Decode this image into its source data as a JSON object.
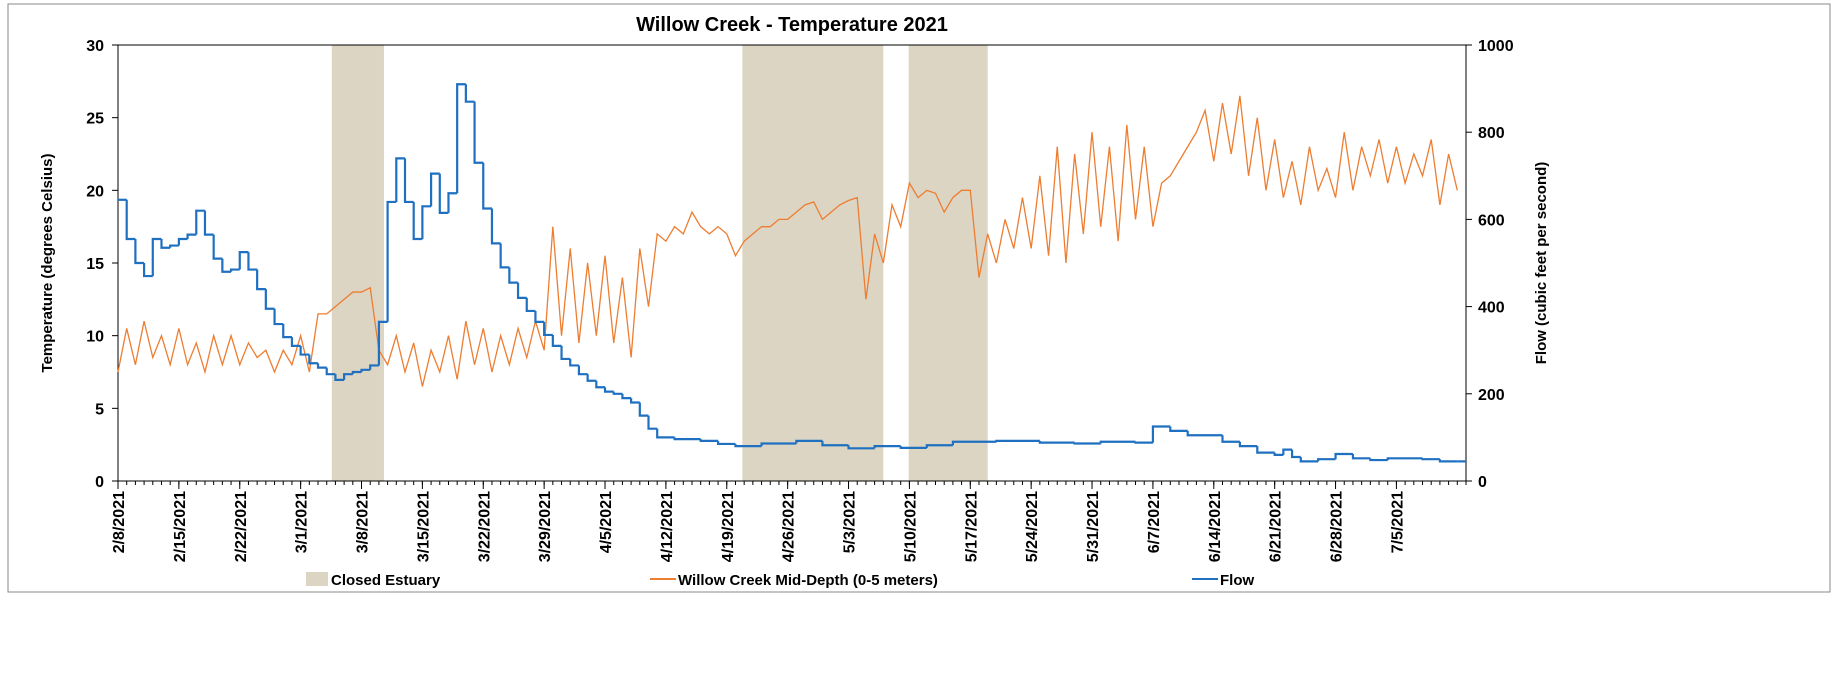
{
  "chart_data": {
    "type": "line",
    "title": "Willow Creek - Temperature 2021",
    "ylabel": "Temperature (degrees Celsius)",
    "y2label": "Flow (cubic feet per second)",
    "xlim": [
      "2021-02-08",
      "2021-07-13"
    ],
    "ylim": [
      0,
      30
    ],
    "yticks": [
      0,
      5,
      10,
      15,
      20,
      25,
      30
    ],
    "y2lim": [
      0,
      1000
    ],
    "y2ticks": [
      0,
      200,
      400,
      600,
      800,
      1000
    ],
    "xticks": [
      {
        "value": "2021-02-08",
        "label": "2/8/2021"
      },
      {
        "value": "2021-02-15",
        "label": "2/15/2021"
      },
      {
        "value": "2021-02-22",
        "label": "2/22/2021"
      },
      {
        "value": "2021-03-01",
        "label": "3/1/2021"
      },
      {
        "value": "2021-03-08",
        "label": "3/8/2021"
      },
      {
        "value": "2021-03-15",
        "label": "3/15/2021"
      },
      {
        "value": "2021-03-22",
        "label": "3/22/2021"
      },
      {
        "value": "2021-03-29",
        "label": "3/29/2021"
      },
      {
        "value": "2021-04-05",
        "label": "4/5/2021"
      },
      {
        "value": "2021-04-12",
        "label": "4/12/2021"
      },
      {
        "value": "2021-04-19",
        "label": "4/19/2021"
      },
      {
        "value": "2021-04-26",
        "label": "4/26/2021"
      },
      {
        "value": "2021-05-03",
        "label": "5/3/2021"
      },
      {
        "value": "2021-05-10",
        "label": "5/10/2021"
      },
      {
        "value": "2021-05-17",
        "label": "5/17/2021"
      },
      {
        "value": "2021-05-24",
        "label": "5/24/2021"
      },
      {
        "value": "2021-05-31",
        "label": "5/31/2021"
      },
      {
        "value": "2021-06-07",
        "label": "6/7/2021"
      },
      {
        "value": "2021-06-14",
        "label": "6/14/2021"
      },
      {
        "value": "2021-06-21",
        "label": "6/21/2021"
      },
      {
        "value": "2021-06-28",
        "label": "6/28/2021"
      },
      {
        "value": "2021-07-05",
        "label": "7/5/2021"
      }
    ],
    "shaded": {
      "name": "Closed Estuary",
      "color": "#ddd5c3",
      "spans": [
        [
          "2021-03-04T14",
          "2021-03-10T14"
        ],
        [
          "2021-04-20T19",
          "2021-05-07T00"
        ],
        [
          "2021-05-09T22",
          "2021-05-19T00"
        ]
      ]
    },
    "series": [
      {
        "name": "Willow Creek Mid-Depth (0-5 meters)",
        "color": "#ed7d31",
        "style": "line",
        "x": [
          "2021-02-08",
          "2021-02-09",
          "2021-02-10",
          "2021-02-11",
          "2021-02-12",
          "2021-02-13",
          "2021-02-14",
          "2021-02-15",
          "2021-02-16",
          "2021-02-17",
          "2021-02-18",
          "2021-02-19",
          "2021-02-20",
          "2021-02-21",
          "2021-02-22",
          "2021-02-23",
          "2021-02-24",
          "2021-02-25",
          "2021-02-26",
          "2021-02-27",
          "2021-02-28",
          "2021-03-01",
          "2021-03-02",
          "2021-03-03",
          "2021-03-04",
          "2021-03-05",
          "2021-03-06",
          "2021-03-07",
          "2021-03-08",
          "2021-03-09",
          "2021-03-10",
          "2021-03-11",
          "2021-03-12",
          "2021-03-13",
          "2021-03-14",
          "2021-03-15",
          "2021-03-16",
          "2021-03-17",
          "2021-03-18",
          "2021-03-19",
          "2021-03-20",
          "2021-03-21",
          "2021-03-22",
          "2021-03-23",
          "2021-03-24",
          "2021-03-25",
          "2021-03-26",
          "2021-03-27",
          "2021-03-28",
          "2021-03-29",
          "2021-03-30",
          "2021-03-31",
          "2021-04-01",
          "2021-04-02",
          "2021-04-03",
          "2021-04-04",
          "2021-04-05",
          "2021-04-06",
          "2021-04-07",
          "2021-04-08",
          "2021-04-09",
          "2021-04-10",
          "2021-04-11",
          "2021-04-12",
          "2021-04-13",
          "2021-04-14",
          "2021-04-15",
          "2021-04-16",
          "2021-04-17",
          "2021-04-18",
          "2021-04-19",
          "2021-04-20",
          "2021-04-21",
          "2021-04-22",
          "2021-04-23",
          "2021-04-24",
          "2021-04-25",
          "2021-04-26",
          "2021-04-27",
          "2021-04-28",
          "2021-04-29",
          "2021-04-30",
          "2021-05-01",
          "2021-05-02",
          "2021-05-03",
          "2021-05-04",
          "2021-05-05",
          "2021-05-06",
          "2021-05-07",
          "2021-05-08",
          "2021-05-09",
          "2021-05-10",
          "2021-05-11",
          "2021-05-12",
          "2021-05-13",
          "2021-05-14",
          "2021-05-15",
          "2021-05-16",
          "2021-05-17",
          "2021-05-18",
          "2021-05-19",
          "2021-05-20",
          "2021-05-21",
          "2021-05-22",
          "2021-05-23",
          "2021-05-24",
          "2021-05-25",
          "2021-05-26",
          "2021-05-27",
          "2021-05-28",
          "2021-05-29",
          "2021-05-30",
          "2021-05-31",
          "2021-06-01",
          "2021-06-02",
          "2021-06-03",
          "2021-06-04",
          "2021-06-05",
          "2021-06-06",
          "2021-06-07",
          "2021-06-08",
          "2021-06-09",
          "2021-06-10",
          "2021-06-11",
          "2021-06-12",
          "2021-06-13",
          "2021-06-14",
          "2021-06-15",
          "2021-06-16",
          "2021-06-17",
          "2021-06-18",
          "2021-06-19",
          "2021-06-20",
          "2021-06-21",
          "2021-06-22",
          "2021-06-23",
          "2021-06-24",
          "2021-06-25",
          "2021-06-26",
          "2021-06-27",
          "2021-06-28",
          "2021-06-29",
          "2021-06-30",
          "2021-07-01",
          "2021-07-02",
          "2021-07-03",
          "2021-07-04",
          "2021-07-05",
          "2021-07-06",
          "2021-07-07",
          "2021-07-08",
          "2021-07-09",
          "2021-07-10",
          "2021-07-11",
          "2021-07-12"
        ],
        "values": [
          7.5,
          10.5,
          8,
          11,
          8.5,
          10,
          8,
          10.5,
          8,
          9.5,
          7.5,
          10,
          8,
          10,
          8,
          9.5,
          8.5,
          9,
          7.5,
          9,
          8,
          10,
          7.5,
          11.5,
          11.5,
          12,
          12.5,
          13,
          13,
          13.3,
          9,
          8,
          10,
          7.5,
          9.5,
          6.5,
          9,
          7.5,
          10,
          7,
          11,
          8,
          10.5,
          7.5,
          10,
          8,
          10.5,
          8.5,
          11,
          9,
          17.5,
          10,
          16,
          9.5,
          15,
          10,
          15.5,
          9.5,
          14,
          8.5,
          16,
          12,
          17,
          16.5,
          17.5,
          17,
          18.5,
          17.5,
          17,
          17.5,
          17,
          15.5,
          16.5,
          17,
          17.5,
          17.5,
          18,
          18,
          18.5,
          19,
          19.2,
          18,
          18.5,
          19,
          19.3,
          19.5,
          12.5,
          17,
          15,
          19,
          17.5,
          20.5,
          19.5,
          20,
          19.8,
          18.5,
          19.5,
          20,
          20,
          14,
          17,
          15,
          18,
          16,
          19.5,
          16,
          21,
          15.5,
          23,
          15,
          22.5,
          17,
          24,
          17.5,
          23,
          16.5,
          24.5,
          18,
          23,
          17.5,
          20.5,
          21,
          22,
          23,
          24,
          25.5,
          22,
          26,
          22.5,
          26.5,
          21,
          25,
          20,
          23.5,
          19.5,
          22,
          19,
          23,
          20,
          21.5,
          19.5,
          24,
          20,
          23,
          21,
          23.5,
          20.5,
          23,
          20.5,
          22.5,
          21,
          23.5,
          19,
          22.5,
          20
        ]
      },
      {
        "name": "Flow",
        "color": "#1f70c1",
        "style": "step",
        "axis": "y2",
        "x": [
          "2021-02-08",
          "2021-02-09",
          "2021-02-10",
          "2021-02-11",
          "2021-02-12",
          "2021-02-13",
          "2021-02-14",
          "2021-02-15",
          "2021-02-16",
          "2021-02-17",
          "2021-02-18",
          "2021-02-19",
          "2021-02-20",
          "2021-02-21",
          "2021-02-22",
          "2021-02-23",
          "2021-02-24",
          "2021-02-25",
          "2021-02-26",
          "2021-02-27",
          "2021-02-28",
          "2021-03-01",
          "2021-03-02",
          "2021-03-03",
          "2021-03-04",
          "2021-03-05",
          "2021-03-06",
          "2021-03-07",
          "2021-03-08",
          "2021-03-09",
          "2021-03-10",
          "2021-03-11",
          "2021-03-12",
          "2021-03-13",
          "2021-03-14",
          "2021-03-15",
          "2021-03-16",
          "2021-03-17",
          "2021-03-18",
          "2021-03-19",
          "2021-03-20",
          "2021-03-21",
          "2021-03-22",
          "2021-03-23",
          "2021-03-24",
          "2021-03-25",
          "2021-03-26",
          "2021-03-27",
          "2021-03-28",
          "2021-03-29",
          "2021-03-30",
          "2021-03-31",
          "2021-04-01",
          "2021-04-02",
          "2021-04-03",
          "2021-04-04",
          "2021-04-05",
          "2021-04-06",
          "2021-04-07",
          "2021-04-08",
          "2021-04-09",
          "2021-04-10",
          "2021-04-11",
          "2021-04-13",
          "2021-04-16",
          "2021-04-18",
          "2021-04-20",
          "2021-04-23",
          "2021-04-27",
          "2021-04-30",
          "2021-05-03",
          "2021-05-06",
          "2021-05-09",
          "2021-05-12",
          "2021-05-15",
          "2021-05-20",
          "2021-05-25",
          "2021-05-29",
          "2021-06-01",
          "2021-06-05",
          "2021-06-07",
          "2021-06-09",
          "2021-06-11",
          "2021-06-15",
          "2021-06-17",
          "2021-06-19",
          "2021-06-21",
          "2021-06-22",
          "2021-06-23",
          "2021-06-24",
          "2021-06-26",
          "2021-06-28",
          "2021-06-30",
          "2021-07-02",
          "2021-07-04",
          "2021-07-08",
          "2021-07-10",
          "2021-07-12"
        ],
        "values": [
          645,
          555,
          500,
          470,
          555,
          535,
          540,
          555,
          565,
          620,
          565,
          510,
          480,
          485,
          525,
          485,
          440,
          395,
          360,
          330,
          310,
          290,
          270,
          260,
          245,
          232,
          245,
          250,
          255,
          265,
          365,
          640,
          740,
          640,
          555,
          630,
          705,
          615,
          660,
          910,
          870,
          730,
          625,
          545,
          490,
          455,
          420,
          390,
          365,
          335,
          310,
          280,
          265,
          245,
          230,
          215,
          205,
          200,
          190,
          180,
          150,
          120,
          100,
          96,
          92,
          85,
          80,
          86,
          92,
          82,
          75,
          80,
          76,
          82,
          90,
          92,
          88,
          86,
          90,
          88,
          125,
          115,
          105,
          90,
          80,
          65,
          60,
          72,
          55,
          45,
          50,
          62,
          52,
          48,
          52,
          50,
          45,
          45
        ]
      }
    ]
  }
}
